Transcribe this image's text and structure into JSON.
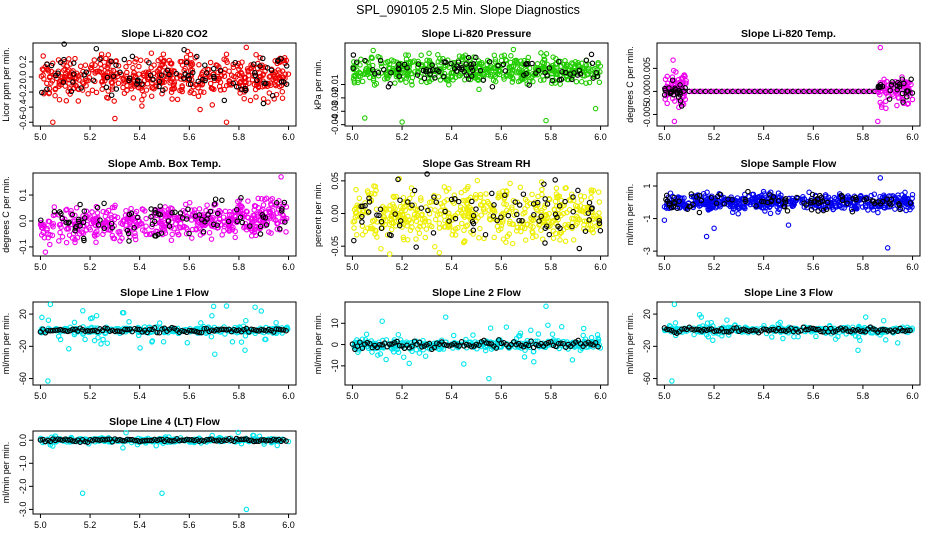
{
  "figure": {
    "title": "SPL_090105  2.5 Min. Slope Diagnostics"
  },
  "chart_data": [
    {
      "type": "scatter",
      "title": "Slope Li-820 CO2",
      "ylabel": "Licor ppm per min.",
      "xlim": [
        4.97,
        6.03
      ],
      "ylim": [
        -0.65,
        0.45
      ],
      "xticks": [
        5.0,
        5.2,
        5.4,
        5.6,
        5.8,
        6.0
      ],
      "xtick_labels": [
        "5.0",
        "5.2",
        "5.4",
        "5.6",
        "5.8",
        "6.0"
      ],
      "yticks": [
        -0.6,
        -0.4,
        -0.2,
        0.0,
        0.2
      ],
      "ytick_labels": [
        "-0.6",
        "-0.4",
        "-0.2",
        "0.0",
        "0.2"
      ],
      "color": "#ee0000",
      "spread": 0.2,
      "center": 0.0,
      "n": 520,
      "black_n": 90,
      "outliers": [
        [
          5.05,
          -0.6
        ],
        [
          5.3,
          -0.55
        ],
        [
          5.75,
          -0.6
        ]
      ]
    },
    {
      "type": "scatter",
      "title": "Slope Li-820 Pressure",
      "ylabel": "kPa per min.",
      "xlim": [
        4.97,
        6.03
      ],
      "ylim": [
        -0.041,
        0.021
      ],
      "xticks": [
        5.0,
        5.2,
        5.4,
        5.6,
        5.8,
        6.0
      ],
      "xtick_labels": [
        "5.0",
        "5.2",
        "5.4",
        "5.6",
        "5.8",
        "6.0"
      ],
      "yticks": [
        -0.04,
        -0.03,
        -0.02,
        -0.01
      ],
      "ytick_labels": [
        "-0.04",
        "-0.03",
        "-0.02",
        "-0.01"
      ],
      "color": "#22cc00",
      "spread": 0.007,
      "center": 0.001,
      "n": 520,
      "black_n": 90,
      "outliers": [
        [
          5.05,
          -0.035
        ],
        [
          5.2,
          -0.038
        ],
        [
          5.78,
          -0.037
        ],
        [
          5.98,
          -0.028
        ]
      ]
    },
    {
      "type": "scatter",
      "title": "Slope Li-820 Temp.",
      "ylabel": "degrees C per min.",
      "xlim": [
        4.97,
        6.03
      ],
      "ylim": [
        -0.0075,
        0.0105
      ],
      "xticks": [
        5.0,
        5.2,
        5.4,
        5.6,
        5.8,
        6.0
      ],
      "xtick_labels": [
        "5.0",
        "5.2",
        "5.4",
        "5.6",
        "5.8",
        "6.0"
      ],
      "yticks": [
        -0.005,
        0.0,
        0.005
      ],
      "ytick_labels": [
        "-0.005",
        "0.000",
        "0.005"
      ],
      "color": "#ee00ee",
      "pattern": "temp"
    },
    {
      "type": "scatter",
      "title": "Slope Amb. Box Temp.",
      "ylabel": "degrees C per min.",
      "xlim": [
        4.97,
        6.03
      ],
      "ylim": [
        -0.135,
        0.185
      ],
      "xticks": [
        5.0,
        5.2,
        5.4,
        5.6,
        5.8,
        6.0
      ],
      "xtick_labels": [
        "5.0",
        "5.2",
        "5.4",
        "5.6",
        "5.8",
        "6.0"
      ],
      "yticks": [
        -0.1,
        0.0,
        0.1
      ],
      "ytick_labels": [
        "-0.1",
        "0.0",
        "0.1"
      ],
      "color": "#ee00ee",
      "spread": 0.045,
      "center": -0.02,
      "trend": 0.04,
      "n": 520,
      "black_n": 90,
      "outliers": [
        [
          5.97,
          0.17
        ],
        [
          5.02,
          -0.12
        ]
      ]
    },
    {
      "type": "scatter",
      "title": "Slope Gas Stream RH",
      "ylabel": "percent per min.",
      "xlim": [
        4.97,
        6.03
      ],
      "ylim": [
        -0.065,
        0.062
      ],
      "xticks": [
        5.0,
        5.2,
        5.4,
        5.6,
        5.8,
        6.0
      ],
      "xtick_labels": [
        "5.0",
        "5.2",
        "5.4",
        "5.6",
        "5.8",
        "6.0"
      ],
      "yticks": [
        -0.05,
        0.0,
        0.05
      ],
      "ytick_labels": [
        "-0.05",
        "0.00",
        "0.05"
      ],
      "color": "#eeee00",
      "spread": 0.03,
      "center": 0.0,
      "n": 520,
      "black_n": 90,
      "outliers": [
        [
          5.15,
          -0.062
        ],
        [
          5.35,
          -0.06
        ]
      ]
    },
    {
      "type": "scatter",
      "title": "Slope Sample Flow",
      "ylabel": "ml/min per min.",
      "xlim": [
        4.97,
        6.03
      ],
      "ylim": [
        -3.3,
        1.8
      ],
      "xticks": [
        5.0,
        5.2,
        5.4,
        5.6,
        5.8,
        6.0
      ],
      "xtick_labels": [
        "5.0",
        "5.2",
        "5.4",
        "5.6",
        "5.8",
        "6.0"
      ],
      "yticks": [
        -3,
        -1,
        1
      ],
      "ytick_labels": [
        "-3",
        "-1",
        "1"
      ],
      "color": "#0000ee",
      "spread": 0.35,
      "center": 0.0,
      "n": 520,
      "black_n": 90,
      "outliers": [
        [
          5.17,
          -2.1
        ],
        [
          5.2,
          -1.6
        ],
        [
          5.5,
          -1.4
        ],
        [
          5.87,
          1.5
        ],
        [
          5.9,
          -2.8
        ],
        [
          5.0,
          -1.1
        ]
      ]
    },
    {
      "type": "scatter",
      "title": "Slope Line 1 Flow",
      "ylabel": "ml/min per min.",
      "xlim": [
        4.97,
        6.03
      ],
      "ylim": [
        -68,
        35
      ],
      "xticks": [
        5.0,
        5.2,
        5.4,
        5.6,
        5.8,
        6.0
      ],
      "xtick_labels": [
        "5.0",
        "5.2",
        "5.4",
        "5.6",
        "5.8",
        "6.0"
      ],
      "yticks": [
        -60,
        -20,
        20
      ],
      "ytick_labels": [
        "-60",
        "-20",
        "20"
      ],
      "color": "#00e5ee",
      "pattern": "flow",
      "spread": 2.5,
      "center": 0.0,
      "scatter_amp": 20,
      "n": 300,
      "black_n": 100,
      "outliers": [
        [
          5.03,
          -63
        ],
        [
          5.04,
          32
        ],
        [
          5.75,
          30
        ]
      ]
    },
    {
      "type": "scatter",
      "title": "Slope Line 2 Flow",
      "ylabel": "ml/min per min.",
      "xlim": [
        4.97,
        6.03
      ],
      "ylim": [
        -19,
        20
      ],
      "xticks": [
        5.0,
        5.2,
        5.4,
        5.6,
        5.8,
        6.0
      ],
      "xtick_labels": [
        "5.0",
        "5.2",
        "5.4",
        "5.6",
        "5.8",
        "6.0"
      ],
      "yticks": [
        -10,
        0,
        10
      ],
      "ytick_labels": [
        "-10",
        "0",
        "10"
      ],
      "color": "#00e5ee",
      "pattern": "flow",
      "spread": 1.5,
      "center": 0.0,
      "scatter_amp": 7,
      "n": 300,
      "black_n": 100,
      "outliers": [
        [
          5.55,
          -16
        ],
        [
          5.78,
          18
        ],
        [
          5.12,
          11
        ]
      ]
    },
    {
      "type": "scatter",
      "title": "Slope Line 3 Flow",
      "ylabel": "ml/min per min.",
      "xlim": [
        4.97,
        6.03
      ],
      "ylim": [
        -68,
        35
      ],
      "xticks": [
        5.0,
        5.2,
        5.4,
        5.6,
        5.8,
        6.0
      ],
      "xtick_labels": [
        "5.0",
        "5.2",
        "5.4",
        "5.6",
        "5.8",
        "6.0"
      ],
      "yticks": [
        -60,
        -20,
        20
      ],
      "ytick_labels": [
        "-60",
        "-20",
        "20"
      ],
      "color": "#00e5ee",
      "pattern": "flow",
      "spread": 2.5,
      "center": 0.0,
      "scatter_amp": 12,
      "n": 300,
      "black_n": 100,
      "outliers": [
        [
          5.03,
          -63
        ],
        [
          5.04,
          32
        ],
        [
          5.78,
          -25
        ]
      ]
    },
    {
      "type": "scatter",
      "title": "Slope Line 4 (LT) Flow",
      "ylabel": "ml/min per min.",
      "xlim": [
        4.97,
        6.03
      ],
      "ylim": [
        -3.2,
        0.4
      ],
      "xticks": [
        5.0,
        5.2,
        5.4,
        5.6,
        5.8,
        6.0
      ],
      "xtick_labels": [
        "5.0",
        "5.2",
        "5.4",
        "5.6",
        "5.8",
        "6.0"
      ],
      "yticks": [
        -3.0,
        -2.0,
        -1.0,
        0.0
      ],
      "ytick_labels": [
        "-3.0",
        "-2.0",
        "-1.0",
        "0.0"
      ],
      "color": "#00e5ee",
      "pattern": "flow",
      "spread": 0.06,
      "center": 0.0,
      "scatter_amp": 0.2,
      "n": 300,
      "black_n": 100,
      "outliers": [
        [
          5.17,
          -2.3
        ],
        [
          5.49,
          -2.3
        ],
        [
          5.83,
          -3.0
        ],
        [
          5.05,
          -0.25
        ]
      ]
    }
  ]
}
